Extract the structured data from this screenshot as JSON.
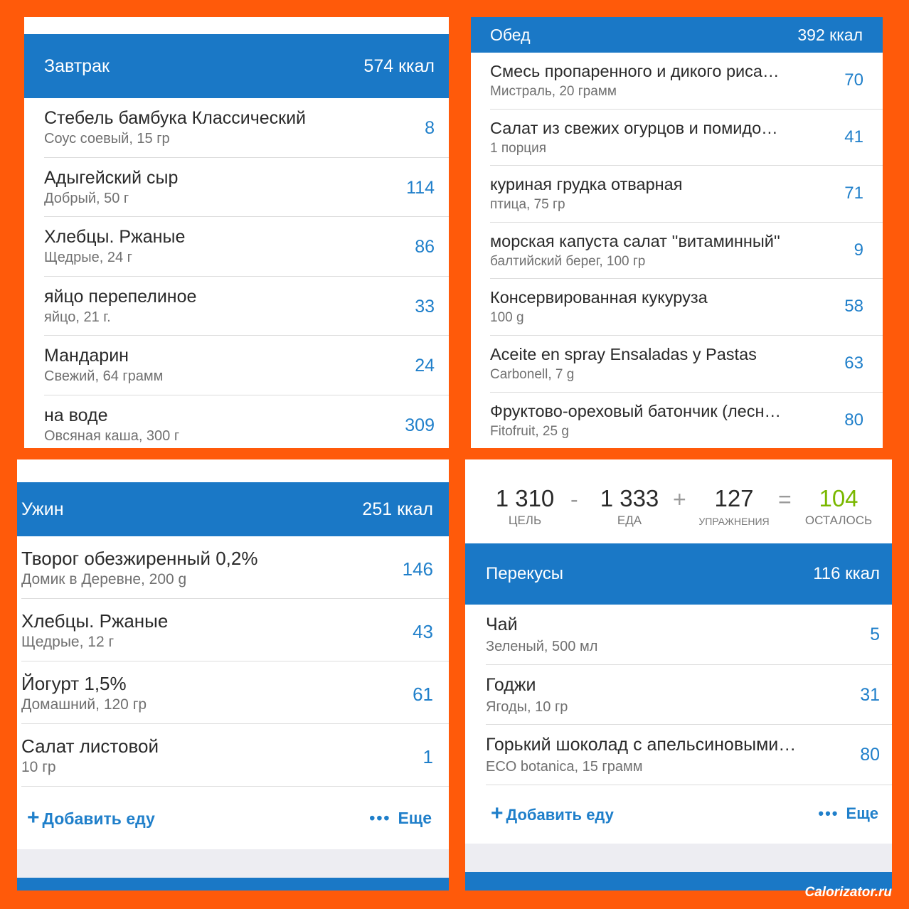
{
  "breakfast": {
    "title": "Завтрак",
    "total": "574 ккал",
    "items": [
      {
        "name": "Стебель бамбука Классический",
        "sub": "Соус соевый, 15 гр",
        "cal": "8"
      },
      {
        "name": "Адыгейский сыр",
        "sub": "Добрый, 50 г",
        "cal": "114"
      },
      {
        "name": "Хлебцы. Ржаные",
        "sub": "Щедрые, 24 г",
        "cal": "86"
      },
      {
        "name": "яйцо перепелиное",
        "sub": "яйцо, 21 г.",
        "cal": "33"
      },
      {
        "name": "Мандарин",
        "sub": "Свежий, 64 грамм",
        "cal": "24"
      },
      {
        "name": "на воде",
        "sub": "Овсяная каша, 300 г",
        "cal": "309"
      }
    ]
  },
  "lunch": {
    "title": "Обед",
    "total": "392 ккал",
    "items": [
      {
        "name": "Смесь пропаренного  и дикого риса…",
        "sub": "Мистраль, 20 грамм",
        "cal": "70"
      },
      {
        "name": "Салат из свежих огурцов и помидо…",
        "sub": "1 порция",
        "cal": "41"
      },
      {
        "name": "куриная грудка отварная",
        "sub": "птица, 75 гр",
        "cal": "71"
      },
      {
        "name": "морская капуста салат ''витаминный''",
        "sub": "балтийский берег, 100 гр",
        "cal": "9"
      },
      {
        "name": "Консервированная кукуруза",
        "sub": "100 g",
        "cal": "58"
      },
      {
        "name": "Aceite en spray Ensaladas y Pastas",
        "sub": "Carbonell, 7 g",
        "cal": "63"
      },
      {
        "name": "Фруктово-ореховый батончик (лесн…",
        "sub": "Fitofruit, 25 g",
        "cal": "80"
      }
    ]
  },
  "dinner": {
    "title": "Ужин",
    "total": "251 ккал",
    "items": [
      {
        "name": "Творог обезжиренный 0,2%",
        "sub": "Домик в Деревне, 200 g",
        "cal": "146"
      },
      {
        "name": "Хлебцы. Ржаные",
        "sub": "Щедрые, 12 г",
        "cal": "43"
      },
      {
        "name": "Йогурт 1,5%",
        "sub": "Домашний, 120 гр",
        "cal": "61"
      },
      {
        "name": "Салат листовой",
        "sub": "10 гр",
        "cal": "1"
      }
    ],
    "add_label": "Добавить еду",
    "more_label": "Еще"
  },
  "summary": {
    "goal": "1 310",
    "goal_label": "ЦЕЛЬ",
    "minus": "-",
    "food": "1 333",
    "food_label": "ЕДА",
    "plus": "+",
    "exercise": "127",
    "exercise_label": "УПРАЖНЕНИЯ",
    "equals": "=",
    "remaining": "104",
    "remaining_label": "ОСТАЛОСЬ",
    "remaining_color": "#7ab800"
  },
  "snacks": {
    "title": "Перекусы",
    "total": "116 ккал",
    "items": [
      {
        "name": "Чай",
        "sub": "Зеленый, 500 мл",
        "cal": "5"
      },
      {
        "name": "Годжи",
        "sub": "Ягоды, 10 гр",
        "cal": "31"
      },
      {
        "name": "Горький шоколад с апельсиновыми…",
        "sub": "ECO botanica, 15 грамм",
        "cal": "80"
      }
    ],
    "add_label": "Добавить еду",
    "more_label": "Еще"
  },
  "colors": {
    "accent": "#1a78c6",
    "link": "#1f7fca",
    "frame": "#ff5a0a"
  },
  "icons": {
    "add": "plus-icon",
    "more": "more-dots-icon"
  },
  "watermark": "Calorizator.ru"
}
